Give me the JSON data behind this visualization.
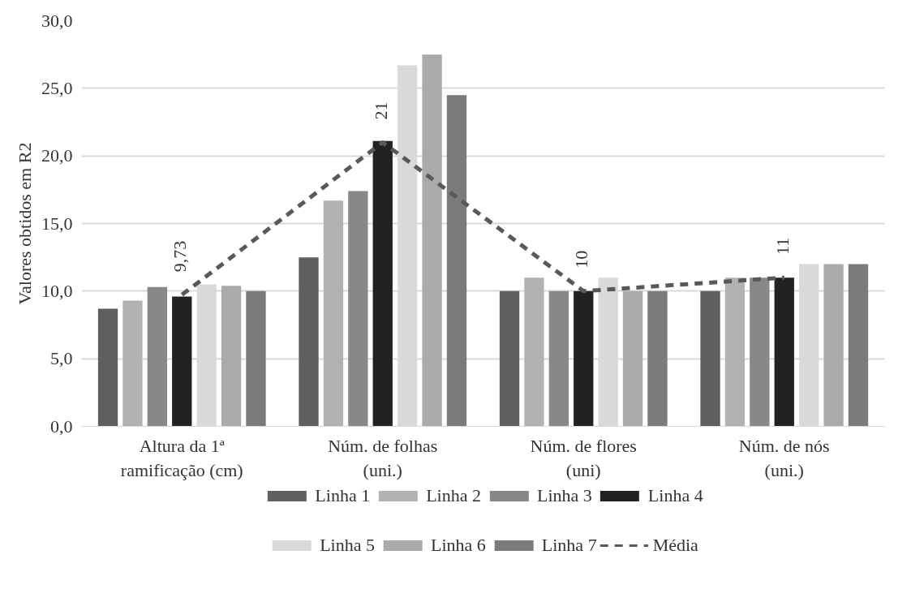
{
  "chart_data": {
    "type": "bar",
    "ylabel": "Valores obtidos em R2",
    "categories": [
      "Altura da 1ª\nramificação (cm)",
      "Núm. de folhas\n(uni.)",
      "Núm. de flores\n(uni)",
      "Núm. de nós\n(uni.)"
    ],
    "series": [
      {
        "name": "Linha 1",
        "color": "#5f5f5f",
        "values": [
          8.7,
          12.5,
          10,
          10
        ]
      },
      {
        "name": "Linha 2",
        "color": "#b2b2b2",
        "values": [
          9.3,
          16.7,
          11,
          11
        ]
      },
      {
        "name": "Linha 3",
        "color": "#888888",
        "values": [
          10.3,
          17.4,
          10,
          11
        ]
      },
      {
        "name": "Linha 4",
        "color": "#222222",
        "values": [
          9.6,
          21.1,
          10,
          11
        ]
      },
      {
        "name": "Linha 5",
        "color": "#d9d9d9",
        "values": [
          10.5,
          26.7,
          11,
          12
        ]
      },
      {
        "name": "Linha 6",
        "color": "#aaaaaa",
        "values": [
          10.4,
          27.5,
          10,
          12
        ]
      },
      {
        "name": "Linha 7",
        "color": "#7b7b7b",
        "values": [
          10.0,
          24.5,
          10,
          12
        ]
      },
      {
        "name": "Média",
        "type": "line",
        "line_style": "dashed",
        "color": "#595959",
        "values": [
          9.73,
          21,
          10,
          11
        ],
        "value_labels": [
          "9,73",
          "21",
          "10",
          "11"
        ]
      }
    ],
    "ylim": [
      0,
      30
    ],
    "yticks": [
      {
        "value": 0,
        "label": "0,0"
      },
      {
        "value": 5,
        "label": "5,0"
      },
      {
        "value": 10,
        "label": "10,0"
      },
      {
        "value": 15,
        "label": "15,0"
      },
      {
        "value": 20,
        "label": "20,0"
      },
      {
        "value": 25,
        "label": "25,0"
      },
      {
        "value": 30,
        "label": "30,0"
      }
    ],
    "grid": "y",
    "legend": "bottom"
  }
}
